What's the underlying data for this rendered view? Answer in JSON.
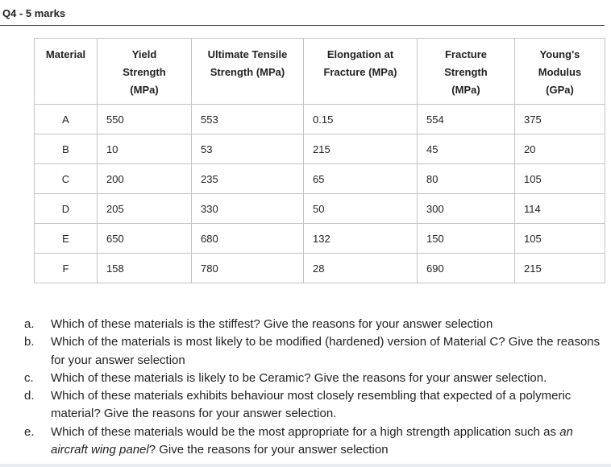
{
  "header": {
    "title": "Q4 - 5 marks"
  },
  "table": {
    "columns": [
      [
        "Material"
      ],
      [
        "Yield",
        "Strength",
        "(MPa)"
      ],
      [
        "Ultimate Tensile",
        "Strength (MPa)"
      ],
      [
        "Elongation at",
        "Fracture (MPa)"
      ],
      [
        "Fracture",
        "Strength",
        "(MPa)"
      ],
      [
        "Young's",
        "Modulus",
        "(GPa)"
      ]
    ],
    "rows": [
      [
        "A",
        "550",
        "553",
        "0.15",
        "554",
        "375"
      ],
      [
        "B",
        "10",
        "53",
        "215",
        "45",
        "20"
      ],
      [
        "C",
        "200",
        "235",
        "65",
        "80",
        "105"
      ],
      [
        "D",
        "205",
        "330",
        "50",
        "300",
        "114"
      ],
      [
        "E",
        "650",
        "680",
        "132",
        "150",
        "105"
      ],
      [
        "F",
        "158",
        "780",
        "28",
        "690",
        "215"
      ]
    ]
  },
  "questions": [
    {
      "label": "a.",
      "parts": [
        "Which of these materials is the stiffest? Give the reasons for your answer selection"
      ]
    },
    {
      "label": "b.",
      "parts": [
        "Which of the materials is most likely to be modified (hardened) version of Material C? Give the reasons for your answer selection"
      ]
    },
    {
      "label": "c.",
      "parts": [
        "Which of these materials is likely to be Ceramic? Give the reasons for your answer selection."
      ]
    },
    {
      "label": "d.",
      "parts": [
        "Which of these materials exhibits behaviour most closely resembling that expected of a polymeric material? Give the reasons for your answer selection."
      ]
    },
    {
      "label": "e.",
      "parts": [
        "Which of these materials would be the most appropriate for a high strength application such as ",
        "an aircraft wing panel",
        "? Give the reasons for your answer selection"
      ]
    }
  ]
}
